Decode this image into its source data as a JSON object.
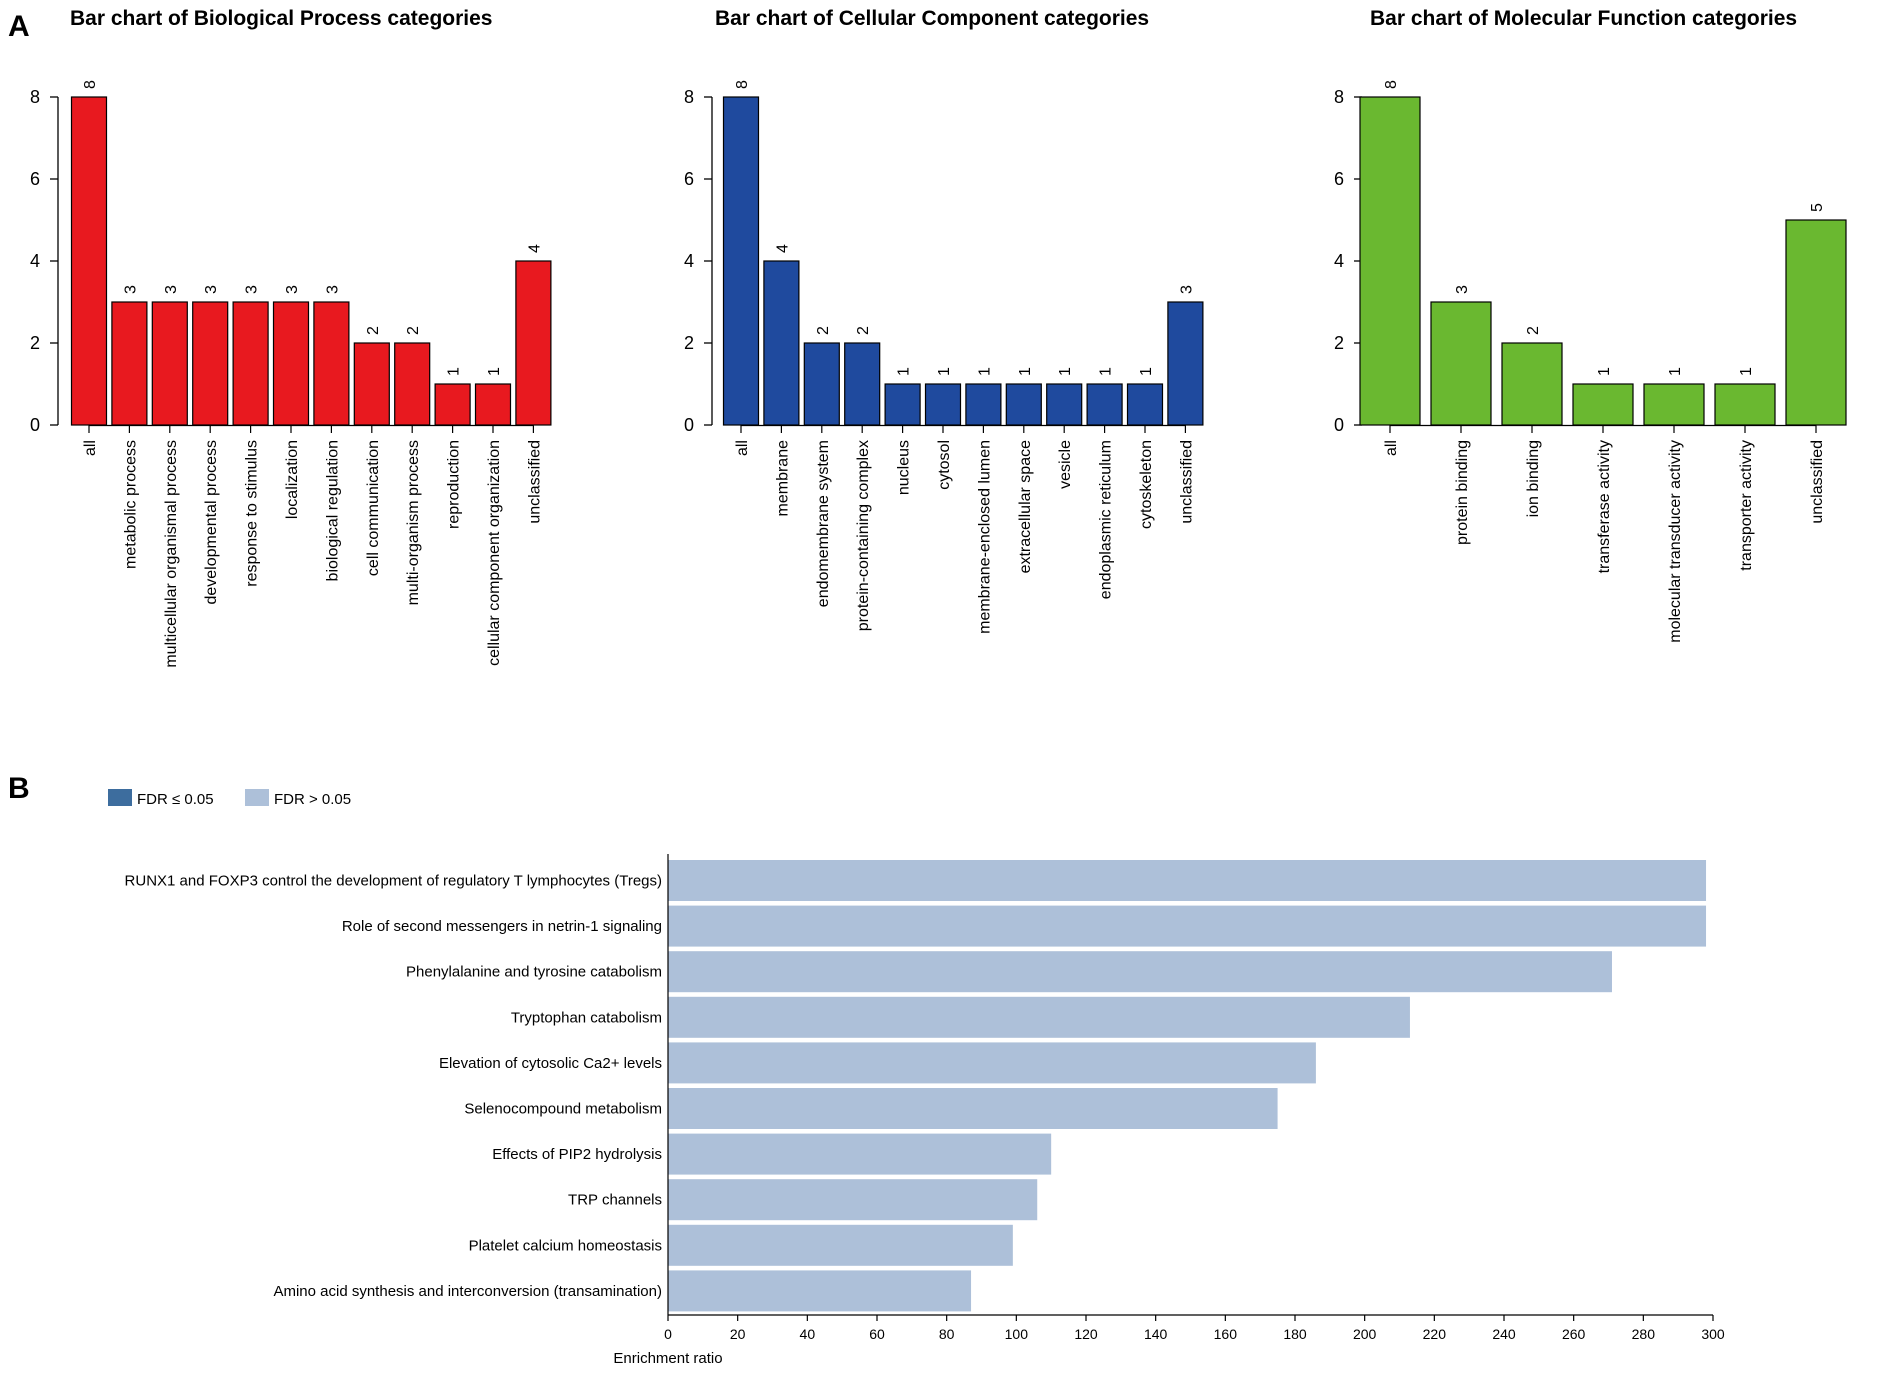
{
  "panels": {
    "a_letter": "A",
    "b_letter": "B"
  },
  "colors": {
    "bp": "#e8191f",
    "cc": "#1f4a9e",
    "mf": "#6ab830",
    "fdr_sig": "#3d6d9e",
    "fdr_nonsig": "#adc0d9"
  },
  "chart_data": [
    {
      "type": "bar",
      "title": "Bar chart of Biological Process categories",
      "categories": [
        "all",
        "metabolic process",
        "multicellular organismal process",
        "developmental process",
        "response to stimulus",
        "localization",
        "biological regulation",
        "cell communication",
        "multi-organism process",
        "reproduction",
        "cellular component organization",
        "unclassified"
      ],
      "values": [
        8,
        3,
        3,
        3,
        3,
        3,
        3,
        2,
        2,
        1,
        1,
        4
      ],
      "ylim": [
        0,
        8
      ],
      "yticks": [
        0,
        2,
        4,
        6,
        8
      ],
      "color_key": "bp",
      "xlabel": "",
      "ylabel": ""
    },
    {
      "type": "bar",
      "title": "Bar chart of Cellular Component categories",
      "categories": [
        "all",
        "membrane",
        "endomembrane system",
        "protein-containing complex",
        "nucleus",
        "cytosol",
        "membrane-enclosed lumen",
        "extracellular space",
        "vesicle",
        "endoplasmic reticulum",
        "cytoskeleton",
        "unclassified"
      ],
      "values": [
        8,
        4,
        2,
        2,
        1,
        1,
        1,
        1,
        1,
        1,
        1,
        3
      ],
      "ylim": [
        0,
        8
      ],
      "yticks": [
        0,
        2,
        4,
        6,
        8
      ],
      "color_key": "cc",
      "xlabel": "",
      "ylabel": ""
    },
    {
      "type": "bar",
      "title": "Bar chart of Molecular Function categories",
      "categories": [
        "all",
        "protein binding",
        "ion binding",
        "transferase activity",
        "molecular transducer activity",
        "transporter activity",
        "unclassified"
      ],
      "values": [
        8,
        3,
        2,
        1,
        1,
        1,
        5
      ],
      "ylim": [
        0,
        8
      ],
      "yticks": [
        0,
        2,
        4,
        6,
        8
      ],
      "color_key": "mf",
      "xlabel": "",
      "ylabel": ""
    },
    {
      "type": "bar",
      "orientation": "horizontal",
      "title": "",
      "categories": [
        "RUNX1 and FOXP3 control the development of regulatory T lymphocytes (Tregs)",
        "Role of second messengers in netrin-1 signaling",
        "Phenylalanine and tyrosine catabolism",
        "Tryptophan catabolism",
        "Elevation of cytosolic Ca2+ levels",
        "Selenocompound metabolism",
        "Effects of PIP2 hydrolysis",
        "TRP channels",
        "Platelet calcium homeostasis",
        "Amino acid synthesis and interconversion (transamination)"
      ],
      "values": [
        298,
        298,
        271,
        213,
        186,
        175,
        110,
        106,
        99,
        87
      ],
      "xlim": [
        0,
        300
      ],
      "xticks": [
        0,
        20,
        40,
        60,
        80,
        100,
        120,
        140,
        160,
        180,
        200,
        220,
        240,
        260,
        280,
        300
      ],
      "xlabel": "Enrichment ratio",
      "ylabel": "",
      "legend": [
        {
          "label": "FDR ≤ 0.05",
          "color_key": "fdr_sig"
        },
        {
          "label": "FDR > 0.05",
          "color_key": "fdr_nonsig"
        }
      ],
      "legend_position": "top-left"
    }
  ]
}
